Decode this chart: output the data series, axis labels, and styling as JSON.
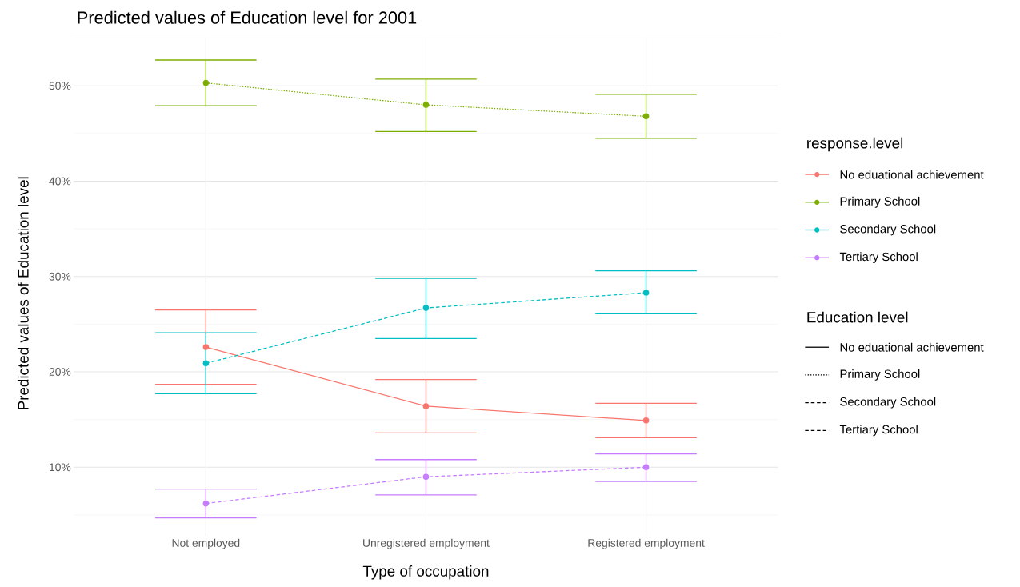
{
  "chart_data": {
    "type": "line",
    "title": "Predicted values of Education level for 2001",
    "xlabel": "Type of occupation",
    "ylabel": "Predicted values of Education level",
    "categories": [
      "Not employed",
      "Unregistered employment",
      "Registered employment"
    ],
    "series": [
      {
        "name": "No eduational achievement",
        "color": "#f8766d",
        "line_style": "solid",
        "values": [
          22.6,
          16.4,
          14.9
        ],
        "errors": [
          [
            18.7,
            26.5
          ],
          [
            13.6,
            19.2
          ],
          [
            13.1,
            16.7
          ]
        ]
      },
      {
        "name": "Primary School",
        "color": "#7cae00",
        "line_style": "dotted",
        "values": [
          50.3,
          48.0,
          46.8
        ],
        "errors": [
          [
            47.9,
            52.7
          ],
          [
            45.2,
            50.7
          ],
          [
            44.5,
            49.1
          ]
        ]
      },
      {
        "name": "Secondary School",
        "color": "#00bfc4",
        "line_style": "dashed",
        "values": [
          20.9,
          26.7,
          28.3
        ],
        "errors": [
          [
            17.7,
            24.1
          ],
          [
            23.5,
            29.8
          ],
          [
            26.1,
            30.6
          ]
        ]
      },
      {
        "name": "Tertiary School",
        "color": "#c77cff",
        "line_style": "dashed",
        "values": [
          6.2,
          9.0,
          10.0
        ],
        "errors": [
          [
            4.7,
            7.7
          ],
          [
            7.1,
            10.8
          ],
          [
            8.5,
            11.4
          ]
        ]
      }
    ],
    "ylim": [
      2.8,
      55
    ],
    "yticks": [
      {
        "value": 10,
        "label": "10%"
      },
      {
        "value": 20,
        "label": "20%"
      },
      {
        "value": 30,
        "label": "30%"
      },
      {
        "value": 40,
        "label": "40%"
      },
      {
        "value": 50,
        "label": "50%"
      }
    ],
    "grid": true,
    "marker": "circle",
    "legend": "right",
    "legend_title": "response.level",
    "annotations": [
      "Education level"
    ]
  }
}
